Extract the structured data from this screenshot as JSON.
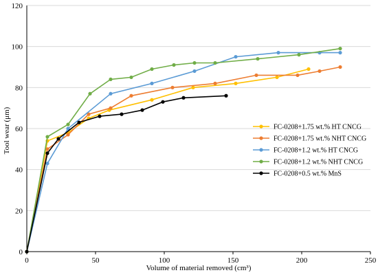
{
  "chart_data": {
    "type": "line",
    "xlabel": "Volume of material removed (cm³)",
    "ylabel": "Tool wear (μm)",
    "xlim": [
      0,
      250
    ],
    "ylim": [
      0,
      120
    ],
    "xticks": [
      0,
      50,
      100,
      150,
      200,
      250
    ],
    "yticks": [
      0,
      20,
      40,
      60,
      80,
      100,
      120
    ],
    "grid": "horizontal",
    "legend_position": "right",
    "series": [
      {
        "name": "FC-0208+1.75 wt.% HT CNCG",
        "color": "#ffc000",
        "x": [
          0,
          15,
          30,
          45,
          60,
          91,
          121,
          152,
          182,
          205
        ],
        "y": [
          0,
          54,
          58,
          65,
          69,
          74,
          80,
          82,
          85,
          89
        ]
      },
      {
        "name": "FC-0208+1.75 wt.% NHT CNCG",
        "color": "#ed7d31",
        "x": [
          0,
          15,
          30,
          45,
          61,
          76,
          106,
          137,
          167,
          197,
          213,
          228
        ],
        "y": [
          0,
          50,
          57,
          67,
          70,
          76,
          80,
          82,
          86,
          86,
          88,
          90
        ]
      },
      {
        "name": "FC-0208+1.2 wt.% HT CNCG",
        "color": "#5b9bd5",
        "x": [
          0,
          15,
          30,
          61,
          91,
          122,
          152,
          183,
          213,
          228
        ],
        "y": [
          0,
          43,
          60,
          77,
          82,
          88,
          95,
          97,
          97,
          97
        ]
      },
      {
        "name": "FC-0208+1.2 wt.% NHT CNCG",
        "color": "#70ad47",
        "x": [
          0,
          15,
          30,
          46,
          61,
          76,
          91,
          107,
          122,
          137,
          168,
          198,
          228
        ],
        "y": [
          0,
          56,
          62,
          77,
          84,
          85,
          89,
          91,
          92,
          92,
          94,
          96,
          99
        ]
      },
      {
        "name": "FC-0208+0.5 wt.% MnS",
        "color": "#000000",
        "x": [
          0,
          15,
          23,
          38,
          53,
          69,
          84,
          99,
          114,
          145
        ],
        "y": [
          0,
          48,
          55,
          63,
          66,
          67,
          69,
          73,
          75,
          76
        ]
      }
    ]
  }
}
